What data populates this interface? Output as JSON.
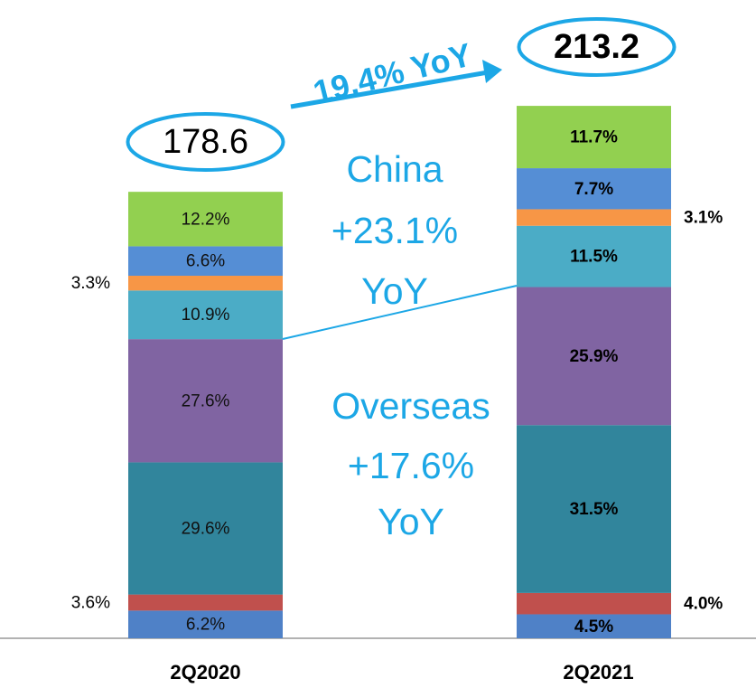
{
  "chart_data": {
    "type": "bar",
    "categories": [
      "2Q2020",
      "2Q2021"
    ],
    "totals": [
      178.6,
      213.2
    ],
    "series": [
      {
        "color": "#4f81c7",
        "values": [
          6.2,
          4.5
        ],
        "value_labels": [
          "6.2%",
          "4.5%"
        ]
      },
      {
        "color": "#c0504d",
        "values": [
          3.6,
          4.0
        ],
        "value_labels": [
          "3.6%",
          "4.0%"
        ]
      },
      {
        "color": "#31859c",
        "values": [
          29.6,
          31.5
        ],
        "value_labels": [
          "29.6%",
          "31.5%"
        ]
      },
      {
        "color": "#8064a2",
        "values": [
          27.6,
          25.9
        ],
        "value_labels": [
          "27.6%",
          "25.9%"
        ]
      },
      {
        "color": "#4bacc6",
        "values": [
          10.9,
          11.5
        ],
        "value_labels": [
          "10.9%",
          "11.5%"
        ]
      },
      {
        "color": "#f79646",
        "values": [
          3.3,
          3.1
        ],
        "value_labels": [
          "3.3%",
          "3.1%"
        ]
      },
      {
        "color": "#558ed5",
        "values": [
          6.6,
          7.7
        ],
        "value_labels": [
          "6.6%",
          "7.7%"
        ]
      },
      {
        "color": "#92d050",
        "values": [
          12.2,
          11.7
        ],
        "value_labels": [
          "12.2%",
          "11.7%"
        ]
      }
    ],
    "annotations": {
      "growth": "19.4% YoY",
      "china": [
        "China",
        "+23.1%",
        "YoY"
      ],
      "overseas": [
        "Overseas",
        "+17.6%",
        "YoY"
      ]
    }
  }
}
